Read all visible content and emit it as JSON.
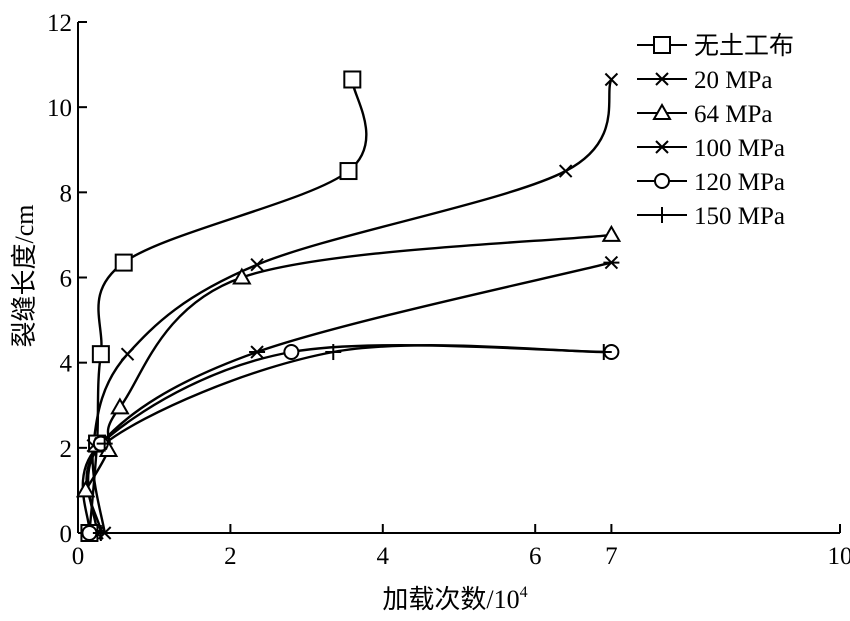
{
  "chart_data": {
    "type": "line",
    "title": "",
    "xlabel": "加载次数/10",
    "xlabel_exponent": "4",
    "ylabel": "裂缝长度/cm",
    "xlim": [
      0,
      10
    ],
    "ylim": [
      0,
      12
    ],
    "x_ticks": [
      "0",
      "2",
      "4",
      "6",
      "7",
      "10"
    ],
    "x_tick_values": [
      0,
      2,
      4,
      6,
      7,
      10
    ],
    "y_ticks": [
      "0",
      "2",
      "4",
      "6",
      "8",
      "10",
      "12"
    ],
    "y_tick_values": [
      0,
      2,
      4,
      6,
      8,
      10,
      12
    ],
    "grid": false,
    "legend_position": "top-right",
    "series": [
      {
        "name": "无土工布",
        "marker": "square",
        "x": [
          0.15,
          0.25,
          0.3,
          0.6,
          3.55,
          3.6
        ],
        "y": [
          0,
          2.1,
          4.2,
          6.35,
          8.5,
          10.65
        ]
      },
      {
        "name": "20 MPa",
        "marker": "x",
        "x": [
          0.35,
          0.2,
          0.65,
          2.35,
          6.4,
          7.0
        ],
        "y": [
          0,
          2.05,
          4.2,
          6.3,
          8.5,
          10.65
        ]
      },
      {
        "name": "64 MPa",
        "marker": "triangle",
        "x": [
          0.1,
          0.4,
          0.55,
          2.15,
          7.0
        ],
        "y": [
          1.0,
          1.95,
          2.95,
          6.0,
          7.0
        ]
      },
      {
        "name": "100 MPa",
        "marker": "asterisk",
        "x": [
          0.25,
          0.3,
          2.35,
          7.0
        ],
        "y": [
          0,
          2.1,
          4.25,
          6.35
        ]
      },
      {
        "name": "120 MPa",
        "marker": "circle",
        "x": [
          0.15,
          0.3,
          2.8,
          7.0
        ],
        "y": [
          0,
          2.1,
          4.25,
          4.25
        ]
      },
      {
        "name": "150 MPa",
        "marker": "plus",
        "x": [
          0.3,
          0.35,
          3.35,
          6.9
        ],
        "y": [
          0,
          2.1,
          4.25,
          4.25
        ]
      }
    ]
  }
}
